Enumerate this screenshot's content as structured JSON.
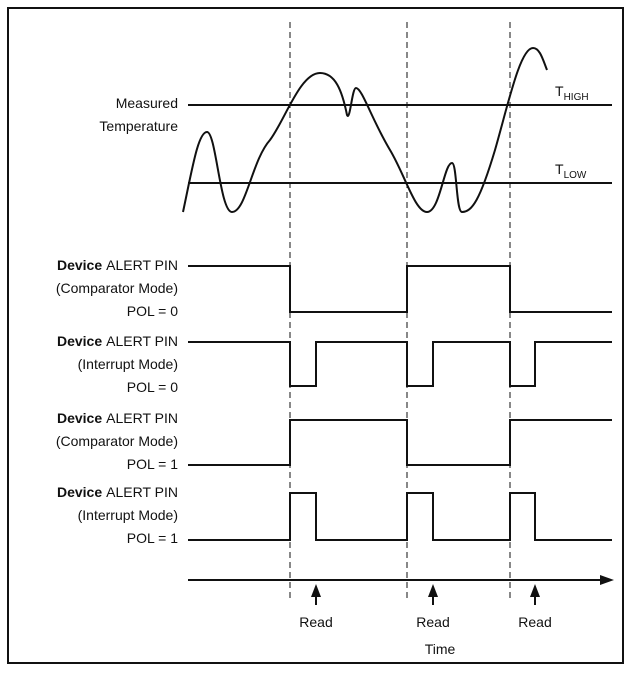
{
  "temperature": {
    "label": [
      "Measured",
      "Temperature"
    ],
    "thresholds": [
      {
        "symbol": "T",
        "subscript": "HIGH"
      },
      {
        "symbol": "T",
        "subscript": "LOW"
      }
    ]
  },
  "signals": [
    {
      "device": "Device",
      "pin": "ALERT PIN",
      "mode": "(Comparator Mode)",
      "polarity": "POL = 0"
    },
    {
      "device": "Device",
      "pin": "ALERT PIN",
      "mode": "(Interrupt Mode)",
      "polarity": "POL = 0"
    },
    {
      "device": "Device",
      "pin": "ALERT PIN",
      "mode": "(Comparator Mode)",
      "polarity": "POL = 1"
    },
    {
      "device": "Device",
      "pin": "ALERT PIN",
      "mode": "(Interrupt Mode)",
      "polarity": "POL = 1"
    }
  ],
  "axis": {
    "reads": [
      "Read",
      "Read",
      "Read"
    ],
    "label": "Time"
  }
}
